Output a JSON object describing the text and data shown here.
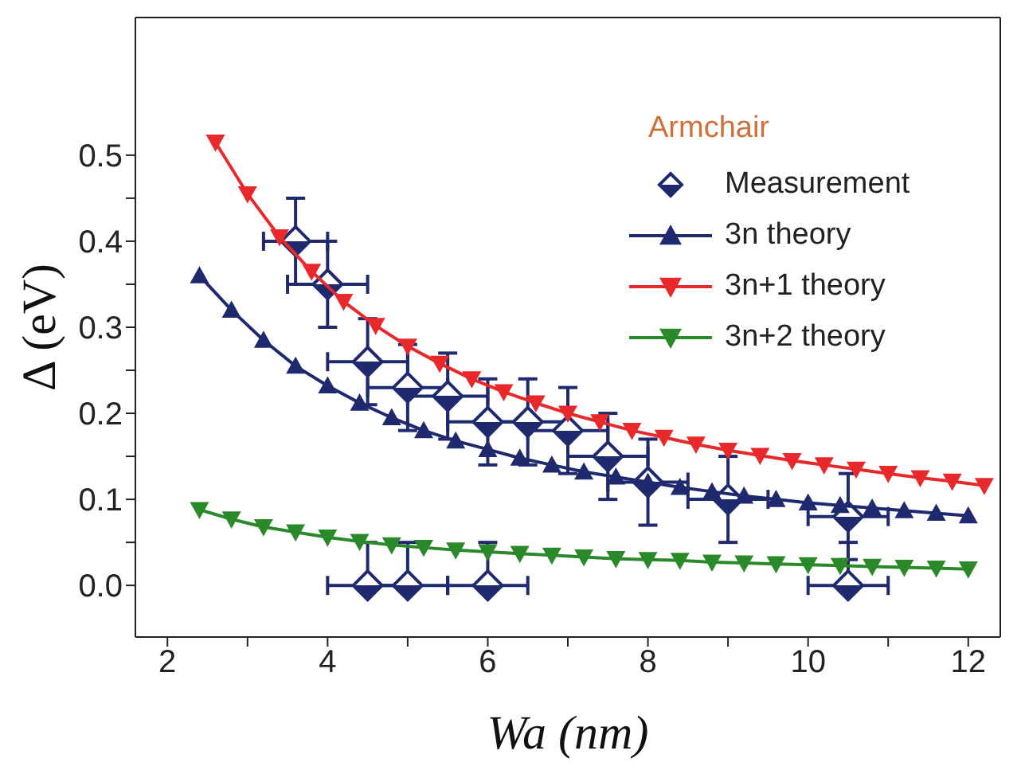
{
  "chart_data": {
    "type": "scatter",
    "xlabel": "Wa (nm)",
    "ylabel": "Δ (eV)",
    "legend_title": "Armchair",
    "legend": "top right",
    "xlim": [
      1.6,
      12.4
    ],
    "ylim": [
      -0.06,
      0.66
    ],
    "xticks": [
      2,
      {
        "value": 3,
        "label": null
      },
      4,
      {
        "value": 5,
        "label": null
      },
      6,
      {
        "value": 7,
        "label": null
      },
      8,
      {
        "value": 9,
        "label": null
      },
      10,
      {
        "value": 11,
        "label": null
      },
      12
    ],
    "yticks": [
      {
        "value": 0,
        "label": "0.0"
      },
      {
        "value": 0.05,
        "label": null
      },
      0.1,
      {
        "value": 0.15,
        "label": null
      },
      0.2,
      {
        "value": 0.25,
        "label": null
      },
      0.3,
      {
        "value": 0.35,
        "label": null
      },
      0.4,
      {
        "value": 0.45,
        "label": null
      },
      0.5
    ],
    "series": [
      {
        "name": "Measurement",
        "marker": "diamond",
        "color": "#1f2a6e",
        "x": [
          3.6,
          4.0,
          4.5,
          5.0,
          5.5,
          6.0,
          6.5,
          7.0,
          7.5,
          8.0,
          9.0,
          10.5,
          4.5,
          5.0,
          6.0,
          10.5
        ],
        "values": [
          0.4,
          0.35,
          0.26,
          0.23,
          0.22,
          0.19,
          0.19,
          0.18,
          0.15,
          0.12,
          0.1,
          0.08,
          0,
          0,
          0,
          0
        ],
        "errors": [
          0.05,
          0.05,
          0.05,
          0.05,
          0.05,
          0.05,
          0.05,
          0.05,
          0.05,
          0.05,
          0.05,
          0.05,
          [
            0,
            0.05
          ],
          [
            0,
            0.05
          ],
          [
            0,
            0.05
          ],
          [
            0,
            0.05
          ]
        ],
        "xerrors": [
          0.4,
          0.5,
          0.5,
          0.5,
          0.5,
          0.5,
          0.5,
          0.5,
          0.5,
          0.5,
          0.5,
          0.5,
          0.5,
          0.5,
          0.5,
          0.5
        ]
      },
      {
        "name": "3n theory",
        "type": "line",
        "marker": "triangle",
        "color": "#1f2a6e",
        "x": [
          2.4,
          2.8,
          3.2,
          3.6,
          4.0,
          4.4,
          4.8,
          5.2,
          5.6,
          6.0,
          6.4,
          6.8,
          7.2,
          7.6,
          8.0,
          8.4,
          8.8,
          9.2,
          9.6,
          10.0,
          10.4,
          10.8,
          11.2,
          11.6,
          12.0
        ],
        "values": [
          0.36,
          0.32,
          0.285,
          0.255,
          0.232,
          0.212,
          0.195,
          0.18,
          0.168,
          0.158,
          0.148,
          0.14,
          0.132,
          0.126,
          0.12,
          0.114,
          0.109,
          0.104,
          0.1,
          0.096,
          0.093,
          0.09,
          0.087,
          0.084,
          0.081
        ]
      },
      {
        "name": "3n+1 theory",
        "type": "line",
        "marker": "triangle-down",
        "color": "#e8282a",
        "x": [
          2.6,
          3.0,
          3.4,
          3.8,
          4.2,
          4.6,
          5.0,
          5.4,
          5.8,
          6.2,
          6.6,
          7.0,
          7.4,
          7.8,
          8.2,
          8.6,
          9.0,
          9.4,
          9.8,
          10.2,
          10.6,
          11.0,
          11.4,
          11.8,
          12.2
        ],
        "values": [
          0.515,
          0.455,
          0.405,
          0.365,
          0.33,
          0.302,
          0.278,
          0.258,
          0.24,
          0.225,
          0.212,
          0.2,
          0.19,
          0.18,
          0.172,
          0.164,
          0.157,
          0.151,
          0.145,
          0.14,
          0.135,
          0.13,
          0.125,
          0.121,
          0.116
        ]
      },
      {
        "name": "3n+2 theory",
        "type": "line",
        "marker": "triangle-down",
        "color": "#2a8a2a",
        "x": [
          2.4,
          2.8,
          3.2,
          3.6,
          4.0,
          4.4,
          4.8,
          5.2,
          5.6,
          6.0,
          6.4,
          6.8,
          7.2,
          7.6,
          8.0,
          8.4,
          8.8,
          9.2,
          9.6,
          10.0,
          10.4,
          10.8,
          11.2,
          11.6,
          12.0
        ],
        "values": [
          0.088,
          0.077,
          0.068,
          0.062,
          0.056,
          0.051,
          0.047,
          0.044,
          0.041,
          0.039,
          0.037,
          0.035,
          0.033,
          0.031,
          0.03,
          0.029,
          0.027,
          0.026,
          0.025,
          0.024,
          0.023,
          0.022,
          0.021,
          0.02,
          0.019
        ]
      }
    ]
  }
}
